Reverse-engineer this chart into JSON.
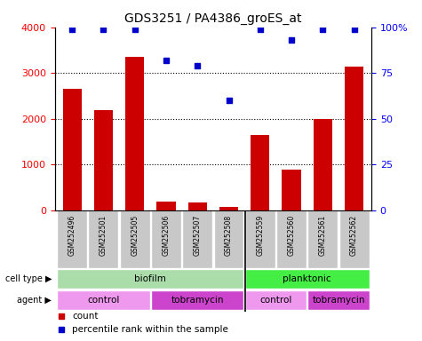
{
  "title": "GDS3251 / PA4386_groES_at",
  "samples": [
    "GSM252496",
    "GSM252501",
    "GSM252505",
    "GSM252506",
    "GSM252507",
    "GSM252508",
    "GSM252559",
    "GSM252560",
    "GSM252561",
    "GSM252562"
  ],
  "counts": [
    2650,
    2200,
    3350,
    200,
    170,
    80,
    1650,
    900,
    2000,
    3150
  ],
  "percentiles": [
    99,
    99,
    99,
    82,
    79,
    60,
    99,
    93,
    99,
    99
  ],
  "bar_color": "#cc0000",
  "dot_color": "#0000cc",
  "ylim_left": [
    0,
    4000
  ],
  "ylim_right": [
    0,
    100
  ],
  "yticks_left": [
    0,
    1000,
    2000,
    3000,
    4000
  ],
  "yticks_right": [
    0,
    25,
    50,
    75,
    100
  ],
  "cell_type_groups": [
    {
      "label": "biofilm",
      "start": 0,
      "end": 5,
      "color": "#aaddaa"
    },
    {
      "label": "planktonic",
      "start": 6,
      "end": 9,
      "color": "#44ee44"
    }
  ],
  "agent_groups": [
    {
      "label": "control",
      "start": 0,
      "end": 2,
      "color": "#ee99ee"
    },
    {
      "label": "tobramycin",
      "start": 3,
      "end": 5,
      "color": "#cc44cc"
    },
    {
      "label": "control",
      "start": 6,
      "end": 7,
      "color": "#ee99ee"
    },
    {
      "label": "tobramycin",
      "start": 8,
      "end": 9,
      "color": "#cc44cc"
    }
  ],
  "legend_count_color": "#cc0000",
  "legend_dot_color": "#0000cc",
  "background_color": "#ffffff",
  "tick_bg_color": "#c8c8c8"
}
